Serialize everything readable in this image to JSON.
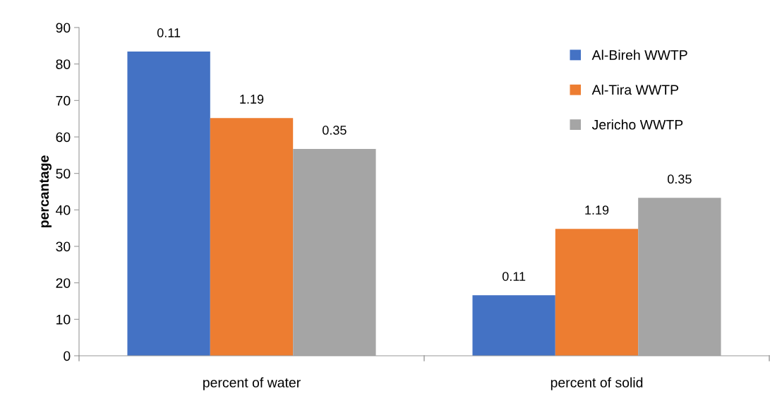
{
  "chart_data": {
    "type": "bar",
    "ylabel": "percantage",
    "categories": [
      "percent of water",
      "percent of solid"
    ],
    "series": [
      {
        "name": "Al-Bireh WWTP",
        "color": "#4472c4",
        "values": [
          83.4,
          16.6
        ]
      },
      {
        "name": "Al-Tira WWTP",
        "color": "#ed7d31",
        "values": [
          65.2,
          34.8
        ]
      },
      {
        "name": "Jericho WWTP",
        "color": "#a5a5a5",
        "values": [
          56.7,
          43.3
        ]
      }
    ],
    "annotations": [
      "0.11",
      "1.19",
      "0.35",
      "0.11",
      "1.19",
      "0.35"
    ],
    "ylim": [
      0,
      90
    ],
    "yticks": [
      0,
      10,
      20,
      30,
      40,
      50,
      60,
      70,
      80,
      90
    ],
    "grid": false,
    "legend": "top right"
  }
}
